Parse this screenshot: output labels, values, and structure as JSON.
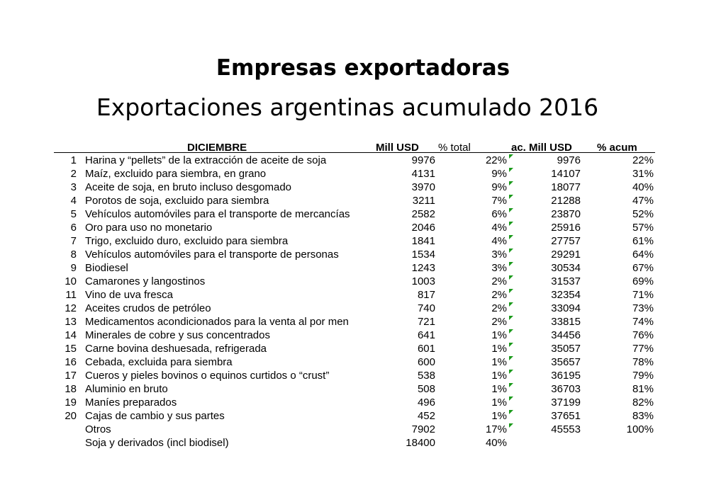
{
  "title": "Empresas exportadoras",
  "subtitle": "Exportaciones argentinas acumulado 2016",
  "header": {
    "month": "DICIEMBRE",
    "mill": "Mill USD",
    "pct_total": "% total",
    "ac_mill": "ac. Mill USD",
    "pct_acum": "% acum"
  },
  "rows": [
    {
      "n": "1",
      "name": "Harina y “pellets” de la extracción de aceite de soja",
      "mill": "9976",
      "pct": "22%",
      "ac": "9976",
      "pa": "22%"
    },
    {
      "n": "2",
      "name": "Maíz, excluido para siembra, en grano",
      "mill": "4131",
      "pct": "9%",
      "ac": "14107",
      "pa": "31%"
    },
    {
      "n": "3",
      "name": "Aceite de soja, en bruto incluso desgomado",
      "mill": "3970",
      "pct": "9%",
      "ac": "18077",
      "pa": "40%"
    },
    {
      "n": "4",
      "name": "Porotos de soja, excluido para siembra",
      "mill": "3211",
      "pct": "7%",
      "ac": "21288",
      "pa": "47%"
    },
    {
      "n": "5",
      "name": "Vehículos automóviles para el transporte de mercancías",
      "mill": "2582",
      "pct": "6%",
      "ac": "23870",
      "pa": "52%"
    },
    {
      "n": "6",
      "name": "Oro para uso no monetario",
      "mill": "2046",
      "pct": "4%",
      "ac": "25916",
      "pa": "57%"
    },
    {
      "n": "7",
      "name": "Trigo, excluido duro, excluido para siembra",
      "mill": "1841",
      "pct": "4%",
      "ac": "27757",
      "pa": "61%"
    },
    {
      "n": "8",
      "name": "Vehículos automóviles para el transporte de personas",
      "mill": "1534",
      "pct": "3%",
      "ac": "29291",
      "pa": "64%"
    },
    {
      "n": "9",
      "name": "Biodiesel",
      "mill": "1243",
      "pct": "3%",
      "ac": "30534",
      "pa": "67%"
    },
    {
      "n": "10",
      "name": "Camarones y langostinos",
      "mill": "1003",
      "pct": "2%",
      "ac": "31537",
      "pa": "69%"
    },
    {
      "n": "11",
      "name": "Vino de uva fresca",
      "mill": "817",
      "pct": "2%",
      "ac": "32354",
      "pa": "71%"
    },
    {
      "n": "12",
      "name": "Aceites crudos de petróleo",
      "mill": "740",
      "pct": "2%",
      "ac": "33094",
      "pa": "73%"
    },
    {
      "n": "13",
      "name": "Medicamentos acondicionados para la venta al por men",
      "mill": "721",
      "pct": "2%",
      "ac": "33815",
      "pa": "74%"
    },
    {
      "n": "14",
      "name": "Minerales de cobre y sus concentrados",
      "mill": "641",
      "pct": "1%",
      "ac": "34456",
      "pa": "76%"
    },
    {
      "n": "15",
      "name": "Carne bovina deshuesada, refrigerada",
      "mill": "601",
      "pct": "1%",
      "ac": "35057",
      "pa": "77%"
    },
    {
      "n": "16",
      "name": "Cebada, excluida para siembra",
      "mill": "600",
      "pct": "1%",
      "ac": "35657",
      "pa": "78%"
    },
    {
      "n": "17",
      "name": "Cueros y pieles bovinos o equinos curtidos o “crust”",
      "mill": "538",
      "pct": "1%",
      "ac": "36195",
      "pa": "79%"
    },
    {
      "n": "18",
      "name": "Aluminio en bruto",
      "mill": "508",
      "pct": "1%",
      "ac": "36703",
      "pa": "81%"
    },
    {
      "n": "19",
      "name": "Maníes preparados",
      "mill": "496",
      "pct": "1%",
      "ac": "37199",
      "pa": "82%"
    },
    {
      "n": "20",
      "name": "Cajas de cambio y sus partes",
      "mill": "452",
      "pct": "1%",
      "ac": "37651",
      "pa": "83%"
    },
    {
      "n": "",
      "name": "Otros",
      "mill": "7902",
      "pct": "17%",
      "ac": "45553",
      "pa": "100%"
    },
    {
      "n": "",
      "name": "Soja y derivados (incl biodisel)",
      "mill": "18400",
      "pct": "40%",
      "ac": "",
      "pa": ""
    }
  ]
}
